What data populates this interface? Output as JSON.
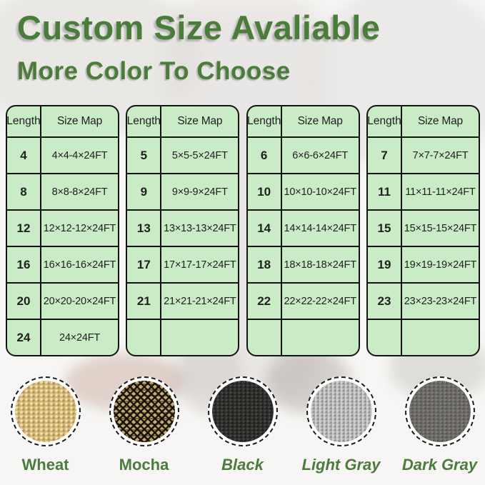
{
  "title": "Custom Size Avaliable",
  "subtitle": "More Color To Choose",
  "colors": {
    "heading_green": "#4a7c3a",
    "label_green": "#4c7b3e",
    "table_background": "#c9ecc6",
    "table_border": "#141414"
  },
  "tables": [
    {
      "headers": [
        "Length",
        "Size Map"
      ],
      "rows": [
        [
          "4",
          "4×4-4×24FT"
        ],
        [
          "8",
          "8×8-8×24FT"
        ],
        [
          "12",
          "12×12-12×24FT"
        ],
        [
          "16",
          "16×16-16×24FT"
        ],
        [
          "20",
          "20×20-20×24FT"
        ],
        [
          "24",
          "24×24FT"
        ]
      ]
    },
    {
      "headers": [
        "Length",
        "Size Map"
      ],
      "rows": [
        [
          "5",
          "5×5-5×24FT"
        ],
        [
          "9",
          "9×9-9×24FT"
        ],
        [
          "13",
          "13×13-13×24FT"
        ],
        [
          "17",
          "17×17-17×24FT"
        ],
        [
          "21",
          "21×21-21×24FT"
        ],
        [
          "",
          ""
        ]
      ]
    },
    {
      "headers": [
        "Length",
        "Size Map"
      ],
      "rows": [
        [
          "6",
          "6×6-6×24FT"
        ],
        [
          "10",
          "10×10-10×24FT"
        ],
        [
          "14",
          "14×14-14×24FT"
        ],
        [
          "18",
          "18×18-18×24FT"
        ],
        [
          "22",
          "22×22-22×24FT"
        ],
        [
          "",
          ""
        ]
      ]
    },
    {
      "headers": [
        "Length",
        "Size Map"
      ],
      "rows": [
        [
          "7",
          "7×7-7×24FT"
        ],
        [
          "11",
          "11×11-11×24FT"
        ],
        [
          "15",
          "15×15-15×24FT"
        ],
        [
          "19",
          "19×19-19×24FT"
        ],
        [
          "23",
          "23×23-23×24FT"
        ],
        [
          "",
          ""
        ]
      ]
    }
  ],
  "swatches": [
    {
      "name": "Wheat",
      "texture": "wheat",
      "base_color": "#d2b678",
      "italic": false
    },
    {
      "name": "Mocha",
      "texture": "mocha",
      "base_color": "#8a7344",
      "italic": false
    },
    {
      "name": "Black",
      "texture": "black",
      "base_color": "#2d2c2a",
      "italic": true
    },
    {
      "name": "Light Gray",
      "texture": "light-gray",
      "base_color": "#afafad",
      "italic": true
    },
    {
      "name": "Dark Gray",
      "texture": "dark-gray",
      "base_color": "#6a6864",
      "italic": true
    }
  ]
}
